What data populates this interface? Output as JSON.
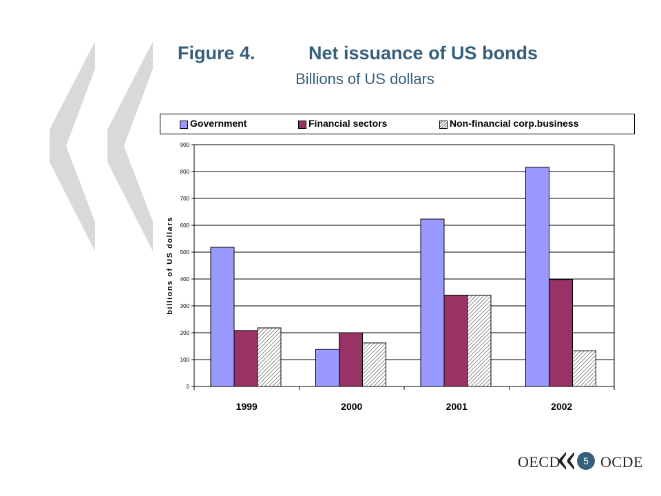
{
  "slide": {
    "title_num": "Figure 4.",
    "title_text": "Net issuance of US bonds",
    "subtitle": "Billions of US dollars",
    "page_number": "5",
    "logo_left": "OECD",
    "logo_right": "OCDE"
  },
  "colors": {
    "title": "#355f7b",
    "government": "#9999ff",
    "financial": "#993366",
    "nonfinancial": "hatched",
    "decoration": "#d9d9d9"
  },
  "chart_data": {
    "type": "bar",
    "categories": [
      "1999",
      "2000",
      "2001",
      "2002"
    ],
    "series": [
      {
        "name": "Government",
        "values": [
          518,
          138,
          623,
          816
        ]
      },
      {
        "name": "Financial sectors",
        "values": [
          208,
          200,
          340,
          398
        ]
      },
      {
        "name": "Non-financial corp.business",
        "values": [
          218,
          162,
          340,
          133
        ]
      }
    ],
    "ylabel": "billions of US dollars",
    "xlabel": "",
    "ylim": [
      0,
      900
    ],
    "yticks": [
      "0",
      "100",
      "200",
      "300",
      "400",
      "500",
      "600",
      "700",
      "800",
      "900"
    ],
    "grid": true,
    "legend_position": "top"
  }
}
